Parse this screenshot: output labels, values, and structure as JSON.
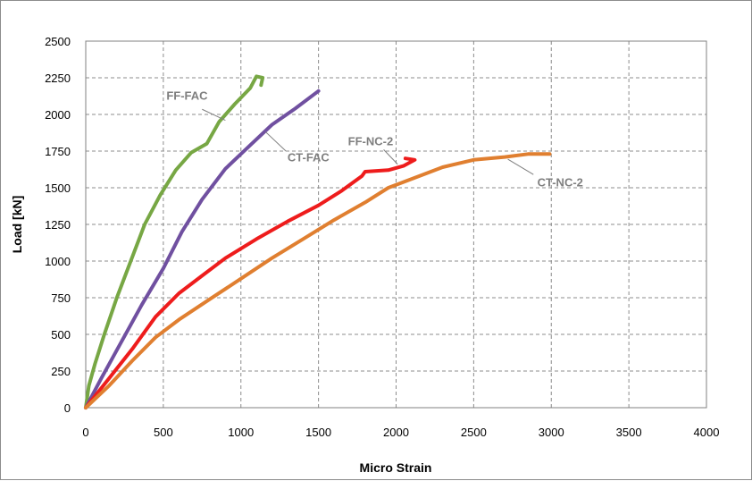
{
  "chart_data": {
    "type": "line",
    "title": "",
    "xlabel": "Micro Strain",
    "ylabel": "Load [kN]",
    "xlim": [
      0,
      4000
    ],
    "ylim": [
      0,
      2500
    ],
    "xticks": [
      0,
      500,
      1000,
      1500,
      2000,
      2500,
      3000,
      3500,
      4000
    ],
    "yticks": [
      0,
      250,
      500,
      750,
      1000,
      1250,
      1500,
      1750,
      2000,
      2250,
      2500
    ],
    "grid": true,
    "legend": "none",
    "series": [
      {
        "name": "FF-FAC",
        "color": "#77a744",
        "points": [
          [
            0,
            0
          ],
          [
            20,
            150
          ],
          [
            60,
            300
          ],
          [
            120,
            500
          ],
          [
            200,
            750
          ],
          [
            290,
            1000
          ],
          [
            380,
            1250
          ],
          [
            480,
            1450
          ],
          [
            580,
            1620
          ],
          [
            680,
            1740
          ],
          [
            780,
            1800
          ],
          [
            860,
            1950
          ],
          [
            960,
            2070
          ],
          [
            1060,
            2180
          ],
          [
            1100,
            2260
          ],
          [
            1140,
            2250
          ],
          [
            1130,
            2200
          ]
        ]
      },
      {
        "name": "CT-FAC",
        "color": "#7050a0",
        "points": [
          [
            0,
            0
          ],
          [
            100,
            200
          ],
          [
            230,
            450
          ],
          [
            360,
            700
          ],
          [
            500,
            950
          ],
          [
            620,
            1200
          ],
          [
            750,
            1420
          ],
          [
            900,
            1630
          ],
          [
            1050,
            1780
          ],
          [
            1200,
            1930
          ],
          [
            1350,
            2040
          ],
          [
            1500,
            2160
          ]
        ]
      },
      {
        "name": "FF-NC-2",
        "color": "#ee1c1c",
        "points": [
          [
            0,
            0
          ],
          [
            150,
            200
          ],
          [
            300,
            400
          ],
          [
            450,
            620
          ],
          [
            600,
            780
          ],
          [
            750,
            900
          ],
          [
            900,
            1020
          ],
          [
            1100,
            1150
          ],
          [
            1300,
            1270
          ],
          [
            1500,
            1380
          ],
          [
            1650,
            1480
          ],
          [
            1780,
            1580
          ],
          [
            1800,
            1610
          ],
          [
            1950,
            1620
          ],
          [
            2050,
            1650
          ],
          [
            2120,
            1690
          ],
          [
            2060,
            1700
          ]
        ]
      },
      {
        "name": "CT-NC-2",
        "color": "#e07f30",
        "points": [
          [
            0,
            0
          ],
          [
            150,
            150
          ],
          [
            300,
            320
          ],
          [
            450,
            480
          ],
          [
            600,
            600
          ],
          [
            800,
            740
          ],
          [
            1000,
            880
          ],
          [
            1200,
            1020
          ],
          [
            1400,
            1150
          ],
          [
            1600,
            1280
          ],
          [
            1800,
            1400
          ],
          [
            1950,
            1500
          ],
          [
            2000,
            1520
          ],
          [
            2150,
            1580
          ],
          [
            2300,
            1640
          ],
          [
            2500,
            1690
          ],
          [
            2700,
            1710
          ],
          [
            2850,
            1730
          ],
          [
            2990,
            1730
          ]
        ]
      }
    ],
    "annotations": [
      {
        "text": "FF-FAC",
        "series": "FF-FAC",
        "text_x": 520,
        "text_y": 2100,
        "leader_from": [
          750,
          2035
        ],
        "leader_to": [
          900,
          1960
        ]
      },
      {
        "text": "CT-FAC",
        "series": "CT-FAC",
        "text_x": 1300,
        "text_y": 1680,
        "leader_from": [
          1160,
          1880
        ],
        "leader_to": [
          1290,
          1750
        ]
      },
      {
        "text": "FF-NC-2",
        "series": "FF-NC-2",
        "text_x": 1690,
        "text_y": 1790,
        "leader_from": [
          1920,
          1760
        ],
        "leader_to": [
          2010,
          1660
        ]
      },
      {
        "text": "CT-NC-2",
        "series": "CT-NC-2",
        "text_x": 2910,
        "text_y": 1510,
        "leader_from": [
          2720,
          1695
        ],
        "leader_to": [
          2885,
          1590
        ]
      }
    ]
  }
}
